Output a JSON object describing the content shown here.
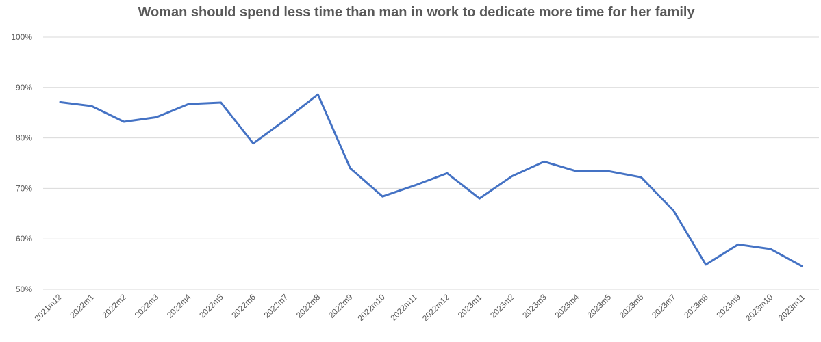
{
  "chart_data": {
    "type": "line",
    "title": "Woman should spend less time than man in work to dedicate more time for her family",
    "categories": [
      "2021m12",
      "2022m1",
      "2022m2",
      "2022m3",
      "2022m4",
      "2022m5",
      "2022m6",
      "2022m7",
      "2022m8",
      "2022m9",
      "2022m10",
      "2022m11",
      "2022m12",
      "2023m1",
      "2023m2",
      "2023m3",
      "2023m4",
      "2023m5",
      "2023m6",
      "2023m7",
      "2023m8",
      "2023m9",
      "2023m10",
      "2023m11"
    ],
    "series": [
      {
        "color": "#4472c4",
        "values": [
          87.1,
          86.3,
          83.2,
          84.1,
          86.7,
          87.0,
          78.9,
          83.6,
          88.6,
          74.0,
          68.4,
          70.6,
          73.0,
          68.0,
          72.4,
          75.3,
          73.4,
          73.4,
          72.2,
          65.6,
          54.9,
          58.9,
          58.0,
          54.5
        ]
      }
    ],
    "ylim": [
      50,
      100
    ],
    "yticks": [
      {
        "value": 50,
        "label": "50%"
      },
      {
        "value": 60,
        "label": "60%"
      },
      {
        "value": 70,
        "label": "70%"
      },
      {
        "value": 80,
        "label": "80%"
      },
      {
        "value": 90,
        "label": "90%"
      },
      {
        "value": 100,
        "label": "100%"
      }
    ],
    "grid": true
  }
}
